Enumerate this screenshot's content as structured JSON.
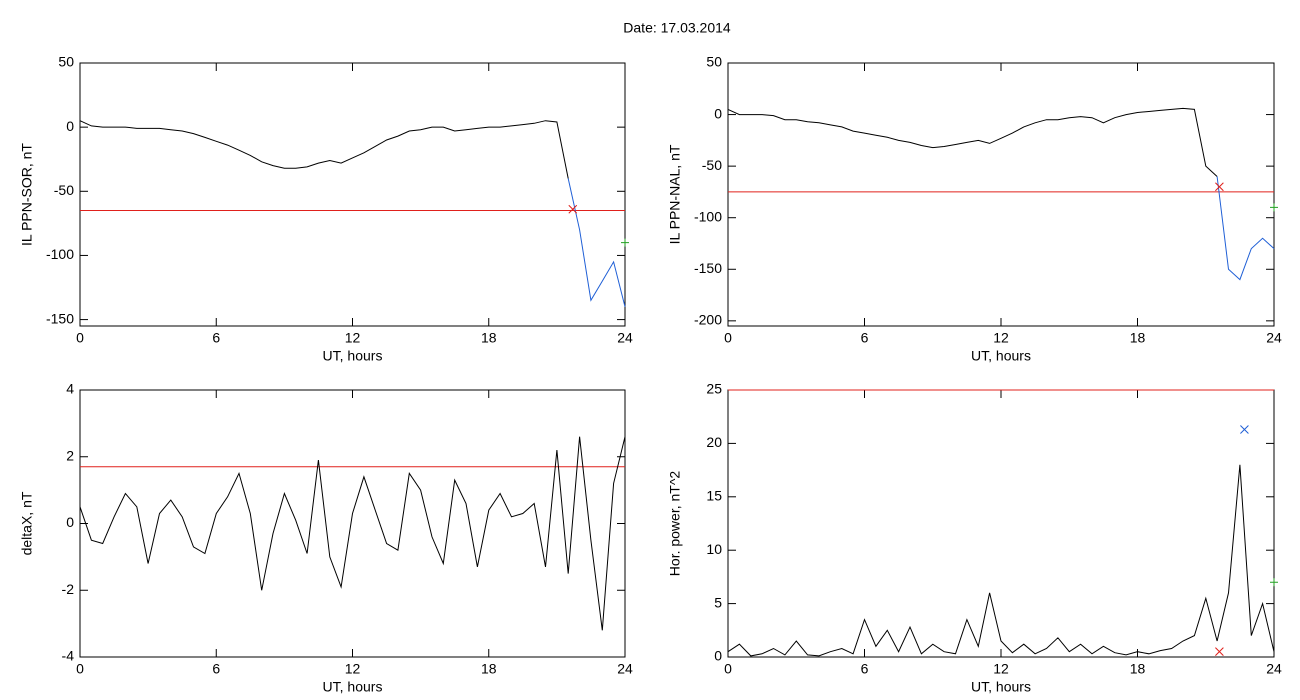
{
  "title": "Date:  17.03.2014",
  "chart_data": [
    {
      "type": "line",
      "ylabel": "IL PPN-SOR, nT",
      "xlabel": "UT, hours",
      "xlim": [
        0,
        24
      ],
      "xticks": [
        0,
        6,
        12,
        18,
        24
      ],
      "ylim": [
        -155,
        50
      ],
      "yticks": [
        -150,
        -100,
        -50,
        0,
        50
      ],
      "x": [
        0,
        0.5,
        1,
        1.5,
        2,
        2.5,
        3,
        3.5,
        4,
        4.5,
        5,
        5.5,
        6,
        6.5,
        7,
        7.5,
        8,
        8.5,
        9,
        9.5,
        10,
        10.5,
        11,
        11.5,
        12,
        12.5,
        13,
        13.5,
        14,
        14.5,
        15,
        15.5,
        16,
        16.5,
        17,
        17.5,
        18,
        18.5,
        19,
        19.5,
        20,
        20.5,
        21,
        21.5,
        22,
        22.5,
        23,
        23.5,
        24
      ],
      "series": [
        {
          "color": "#000000",
          "values": [
            5,
            1,
            0,
            0,
            0,
            -1,
            -1,
            -1,
            -2,
            -3,
            -5,
            -8,
            -11,
            -14,
            -18,
            -22,
            -27,
            -30,
            -32,
            -32,
            -31,
            -28,
            -26,
            -28,
            -24,
            -20,
            -15,
            -10,
            -7,
            -3,
            -2,
            0,
            0,
            -3,
            -2,
            -1,
            0,
            0,
            1,
            2,
            3,
            5,
            4,
            -40,
            null,
            null,
            null,
            null,
            null
          ]
        },
        {
          "color": "#1f5fd6",
          "values": [
            null,
            null,
            null,
            null,
            null,
            null,
            null,
            null,
            null,
            null,
            null,
            null,
            null,
            null,
            null,
            null,
            null,
            null,
            null,
            null,
            null,
            null,
            null,
            null,
            null,
            null,
            null,
            null,
            null,
            null,
            null,
            null,
            null,
            null,
            null,
            null,
            null,
            null,
            null,
            null,
            null,
            null,
            null,
            -40,
            -80,
            -135,
            -120,
            -105,
            -140
          ]
        }
      ],
      "hline": {
        "value": -65,
        "color": "#e0201b"
      },
      "markers": [
        {
          "x": 21.7,
          "y": -64,
          "color": "#e0201b",
          "symbol": "x"
        },
        {
          "x": 24,
          "y": -90,
          "color": "#22a022",
          "symbol": "+"
        }
      ]
    },
    {
      "type": "line",
      "ylabel": "IL PPN-NAL, nT",
      "xlabel": "UT, hours",
      "xlim": [
        0,
        24
      ],
      "xticks": [
        0,
        6,
        12,
        18,
        24
      ],
      "ylim": [
        -205,
        50
      ],
      "yticks": [
        -200,
        -150,
        -100,
        -50,
        0,
        50
      ],
      "x": [
        0,
        0.5,
        1,
        1.5,
        2,
        2.5,
        3,
        3.5,
        4,
        4.5,
        5,
        5.5,
        6,
        6.5,
        7,
        7.5,
        8,
        8.5,
        9,
        9.5,
        10,
        10.5,
        11,
        11.5,
        12,
        12.5,
        13,
        13.5,
        14,
        14.5,
        15,
        15.5,
        16,
        16.5,
        17,
        17.5,
        18,
        18.5,
        19,
        19.5,
        20,
        20.5,
        21,
        21.5,
        22,
        22.5,
        23,
        23.5,
        24
      ],
      "series": [
        {
          "color": "#000000",
          "values": [
            5,
            0,
            0,
            0,
            -1,
            -5,
            -5,
            -7,
            -8,
            -10,
            -12,
            -16,
            -18,
            -20,
            -22,
            -25,
            -27,
            -30,
            -32,
            -31,
            -29,
            -27,
            -25,
            -28,
            -23,
            -18,
            -12,
            -8,
            -5,
            -5,
            -3,
            -2,
            -3,
            -8,
            -3,
            0,
            2,
            3,
            4,
            5,
            6,
            5,
            -50,
            -60,
            null,
            null,
            null,
            null,
            null
          ]
        },
        {
          "color": "#1f5fd6",
          "values": [
            null,
            null,
            null,
            null,
            null,
            null,
            null,
            null,
            null,
            null,
            null,
            null,
            null,
            null,
            null,
            null,
            null,
            null,
            null,
            null,
            null,
            null,
            null,
            null,
            null,
            null,
            null,
            null,
            null,
            null,
            null,
            null,
            null,
            null,
            null,
            null,
            null,
            null,
            null,
            null,
            null,
            null,
            null,
            -60,
            -150,
            -160,
            -130,
            -120,
            -130
          ]
        }
      ],
      "hline": {
        "value": -75,
        "color": "#e0201b"
      },
      "markers": [
        {
          "x": 21.6,
          "y": -70,
          "color": "#e0201b",
          "symbol": "x"
        },
        {
          "x": 24,
          "y": -90,
          "color": "#22a022",
          "symbol": "+"
        }
      ]
    },
    {
      "type": "line",
      "ylabel": "deltaX, nT",
      "xlabel": "UT, hours",
      "xlim": [
        0,
        24
      ],
      "xticks": [
        0,
        6,
        12,
        18,
        24
      ],
      "ylim": [
        -4,
        4
      ],
      "yticks": [
        -4,
        -2,
        0,
        2,
        4
      ],
      "x": [
        0,
        0.5,
        1,
        1.5,
        2,
        2.5,
        3,
        3.5,
        4,
        4.5,
        5,
        5.5,
        6,
        6.5,
        7,
        7.5,
        8,
        8.5,
        9,
        9.5,
        10,
        10.5,
        11,
        11.5,
        12,
        12.5,
        13,
        13.5,
        14,
        14.5,
        15,
        15.5,
        16,
        16.5,
        17,
        17.5,
        18,
        18.5,
        19,
        19.5,
        20,
        20.5,
        21,
        21.5,
        22,
        22.5,
        23,
        23.5,
        24
      ],
      "series": [
        {
          "color": "#000000",
          "values": [
            0.5,
            -0.5,
            -0.6,
            0.2,
            0.9,
            0.5,
            -1.2,
            0.3,
            0.7,
            0.2,
            -0.7,
            -0.9,
            0.3,
            0.8,
            1.5,
            0.3,
            -2.0,
            -0.3,
            0.9,
            0.1,
            -0.9,
            1.9,
            -1.0,
            -1.9,
            0.3,
            1.4,
            0.4,
            -0.6,
            -0.8,
            1.5,
            1.0,
            -0.4,
            -1.2,
            1.3,
            0.6,
            -1.3,
            0.4,
            0.9,
            0.2,
            0.3,
            0.6,
            -1.3,
            2.2,
            -1.5,
            2.6,
            -0.5,
            -3.2,
            1.2,
            2.6
          ]
        }
      ],
      "hline": {
        "value": 1.7,
        "color": "#e0201b"
      },
      "markers": []
    },
    {
      "type": "line",
      "ylabel": "Hor. power, nT^2",
      "xlabel": "UT, hours",
      "xlim": [
        0,
        24
      ],
      "xticks": [
        0,
        6,
        12,
        18,
        24
      ],
      "ylim": [
        0,
        25
      ],
      "yticks": [
        0,
        5,
        10,
        15,
        20,
        25
      ],
      "x": [
        0,
        0.5,
        1,
        1.5,
        2,
        2.5,
        3,
        3.5,
        4,
        4.5,
        5,
        5.5,
        6,
        6.5,
        7,
        7.5,
        8,
        8.5,
        9,
        9.5,
        10,
        10.5,
        11,
        11.5,
        12,
        12.5,
        13,
        13.5,
        14,
        14.5,
        15,
        15.5,
        16,
        16.5,
        17,
        17.5,
        18,
        18.5,
        19,
        19.5,
        20,
        20.5,
        21,
        21.5,
        22,
        22.5,
        23,
        23.5,
        24
      ],
      "series": [
        {
          "color": "#000000",
          "values": [
            0.5,
            1.2,
            0.1,
            0.3,
            0.8,
            0.2,
            1.5,
            0.2,
            0.1,
            0.5,
            0.8,
            0.3,
            3.5,
            1.0,
            2.5,
            0.5,
            2.8,
            0.3,
            1.2,
            0.5,
            0.3,
            3.5,
            1.0,
            6.0,
            1.5,
            0.4,
            1.2,
            0.3,
            0.8,
            1.8,
            0.5,
            1.2,
            0.3,
            1.0,
            0.4,
            0.2,
            0.5,
            0.3,
            0.6,
            0.8,
            1.5,
            2.0,
            5.5,
            1.5,
            6.0,
            18.0,
            2.0,
            5.0,
            0.5
          ]
        }
      ],
      "hline": {
        "value": 25,
        "color": "#e0201b"
      },
      "markers": [
        {
          "x": 22.7,
          "y": 21.3,
          "color": "#1f5fd6",
          "symbol": "x"
        },
        {
          "x": 21.6,
          "y": 0.5,
          "color": "#e0201b",
          "symbol": "x"
        },
        {
          "x": 24,
          "y": 7,
          "color": "#22a022",
          "symbol": "+"
        }
      ]
    }
  ]
}
